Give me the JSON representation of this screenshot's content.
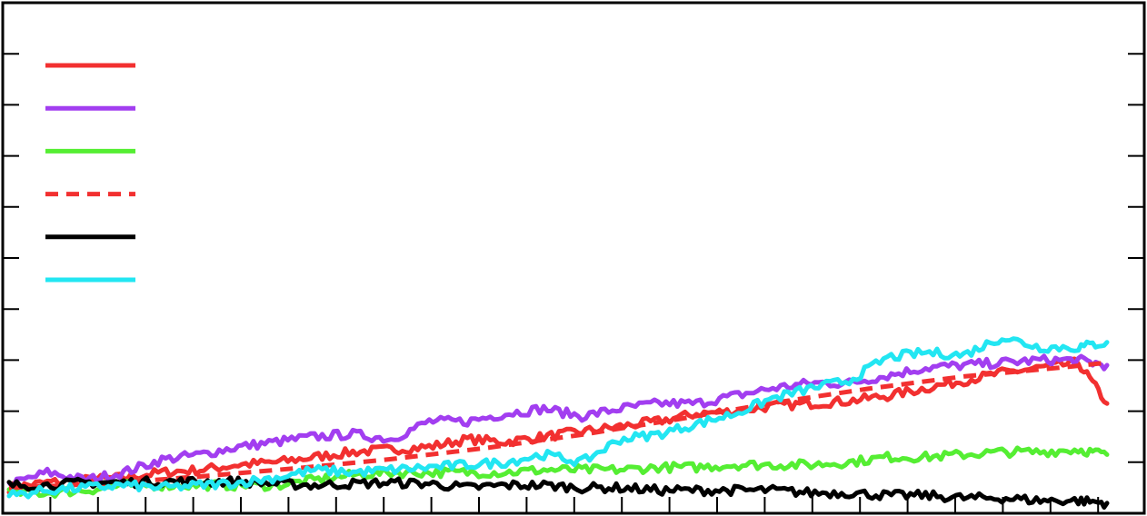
{
  "chart_data": {
    "type": "line",
    "title": "",
    "xlabel": "",
    "ylabel": "",
    "xlim": [
      0,
      115
    ],
    "ylim": [
      -0.5,
      9.5
    ],
    "grid": false,
    "legend_position": "top-left",
    "series": [
      {
        "color": "#f23030",
        "style": "solid",
        "x": [
          0,
          4,
          8,
          12,
          16,
          20,
          24,
          28,
          32,
          36,
          40,
          44,
          48,
          52,
          56,
          60,
          64,
          68,
          72,
          76,
          80,
          84,
          88,
          92,
          96,
          100,
          104,
          108,
          112,
          115
        ],
        "y": [
          0.0,
          0.1,
          0.15,
          0.2,
          0.3,
          0.35,
          0.45,
          0.5,
          0.6,
          0.7,
          0.75,
          0.8,
          0.95,
          0.9,
          1.0,
          1.1,
          1.2,
          1.3,
          1.45,
          1.5,
          1.6,
          1.65,
          1.7,
          1.8,
          1.95,
          2.1,
          2.25,
          2.35,
          2.45,
          1.65
        ]
      },
      {
        "color": "#a23ef0",
        "style": "solid",
        "x": [
          0,
          4,
          8,
          12,
          16,
          20,
          24,
          28,
          32,
          36,
          40,
          44,
          48,
          52,
          56,
          60,
          64,
          68,
          72,
          76,
          80,
          84,
          88,
          92,
          96,
          100,
          104,
          108,
          112,
          115
        ],
        "y": [
          0.05,
          0.3,
          0.15,
          0.3,
          0.55,
          0.65,
          0.8,
          0.9,
          1.0,
          1.05,
          0.95,
          1.3,
          1.3,
          1.45,
          1.55,
          1.4,
          1.55,
          1.65,
          1.65,
          1.8,
          1.95,
          2.05,
          2.05,
          2.2,
          2.35,
          2.4,
          2.45,
          2.5,
          2.5,
          2.4
        ]
      },
      {
        "color": "#55ee33",
        "style": "solid",
        "x": [
          0,
          4,
          8,
          12,
          16,
          20,
          24,
          28,
          32,
          36,
          40,
          44,
          48,
          52,
          56,
          60,
          64,
          68,
          72,
          76,
          80,
          84,
          88,
          92,
          96,
          100,
          104,
          108,
          112,
          115
        ],
        "y": [
          -0.1,
          -0.1,
          -0.05,
          0.05,
          0.05,
          0.05,
          0.05,
          0.05,
          0.15,
          0.25,
          0.3,
          0.3,
          0.3,
          0.3,
          0.35,
          0.35,
          0.35,
          0.4,
          0.4,
          0.45,
          0.45,
          0.45,
          0.5,
          0.6,
          0.6,
          0.65,
          0.7,
          0.7,
          0.75,
          0.65
        ]
      },
      {
        "color": "#f23030",
        "style": "dashed",
        "x": [
          0,
          10,
          20,
          30,
          40,
          50,
          60,
          70,
          80,
          90,
          100,
          110,
          115
        ],
        "y": [
          0.0,
          0.08,
          0.22,
          0.38,
          0.56,
          0.78,
          1.04,
          1.34,
          1.66,
          1.94,
          2.18,
          2.35,
          2.45
        ]
      },
      {
        "color": "#000000",
        "style": "solid",
        "x": [
          0,
          4,
          8,
          12,
          16,
          20,
          24,
          28,
          32,
          36,
          40,
          44,
          48,
          52,
          56,
          60,
          64,
          68,
          72,
          76,
          80,
          84,
          88,
          92,
          96,
          100,
          104,
          108,
          112,
          115
        ],
        "y": [
          0.05,
          0.05,
          0.1,
          0.1,
          0.12,
          0.12,
          0.12,
          0.08,
          0.05,
          0.08,
          0.1,
          0.08,
          0.0,
          0.05,
          0.05,
          0.0,
          0.0,
          -0.05,
          -0.05,
          -0.05,
          -0.05,
          -0.1,
          -0.1,
          -0.15,
          -0.15,
          -0.2,
          -0.2,
          -0.25,
          -0.25,
          -0.3
        ]
      },
      {
        "color": "#22e6f2",
        "style": "solid",
        "x": [
          0,
          4,
          8,
          12,
          16,
          20,
          24,
          28,
          32,
          36,
          40,
          44,
          48,
          52,
          56,
          60,
          64,
          68,
          72,
          76,
          80,
          84,
          88,
          92,
          96,
          100,
          104,
          108,
          112,
          115
        ],
        "y": [
          -0.15,
          -0.05,
          0.0,
          0.05,
          0.0,
          0.05,
          0.1,
          0.2,
          0.35,
          0.3,
          0.35,
          0.4,
          0.45,
          0.5,
          0.65,
          0.5,
          0.95,
          1.05,
          1.25,
          1.45,
          1.75,
          1.95,
          2.1,
          2.55,
          2.65,
          2.6,
          2.95,
          2.75,
          2.75,
          2.85
        ]
      }
    ]
  }
}
